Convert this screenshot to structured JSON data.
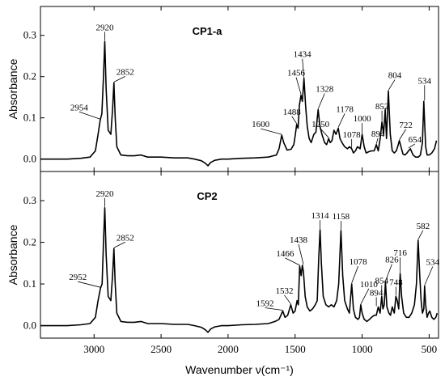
{
  "chart_data": [
    {
      "type": "line",
      "title": "CP1-a",
      "xlabel": "Wavenumber  ν(cm⁻¹)",
      "ylabel": "Absorbance",
      "xlim": [
        3400,
        430
      ],
      "ylim": [
        -0.03,
        0.37
      ],
      "x_reversed": true,
      "x_ticks": [
        "3000",
        "2500",
        "2000",
        "1500",
        "1000",
        "500"
      ],
      "y_ticks": [
        "0.0",
        "0.1",
        "0.2",
        "0.3"
      ],
      "y_tick_values": [
        0.0,
        0.1,
        0.2,
        0.3
      ],
      "x_tick_values": [
        3000,
        2500,
        2000,
        1500,
        1000,
        500
      ],
      "series": [
        {
          "x": [
            3400,
            3300,
            3200,
            3100,
            3030,
            2990,
            2970,
            2954,
            2942,
            2930,
            2920,
            2910,
            2895,
            2875,
            2862,
            2852,
            2842,
            2830,
            2800,
            2750,
            2700,
            2650,
            2600,
            2500,
            2400,
            2300,
            2250,
            2200,
            2170,
            2150,
            2130,
            2100,
            2050,
            2000,
            1900,
            1800,
            1700,
            1640,
            1620,
            1600,
            1585,
            1560,
            1530,
            1510,
            1500,
            1488,
            1478,
            1468,
            1456,
            1446,
            1434,
            1422,
            1410,
            1395,
            1380,
            1360,
            1345,
            1328,
            1315,
            1300,
            1280,
            1265,
            1250,
            1238,
            1225,
            1210,
            1195,
            1178,
            1165,
            1150,
            1130,
            1110,
            1095,
            1078,
            1065,
            1050,
            1035,
            1015,
            1000,
            985,
            970,
            950,
            930,
            910,
            894,
            880,
            865,
            852,
            840,
            828,
            818,
            804,
            790,
            775,
            760,
            745,
            735,
            722,
            710,
            695,
            680,
            665,
            654,
            640,
            620,
            600,
            580,
            565,
            550,
            540,
            534,
            526,
            515,
            500,
            480,
            460,
            445
          ],
          "y": [
            0.0,
            0.0,
            0.0,
            0.002,
            0.005,
            0.02,
            0.06,
            0.095,
            0.11,
            0.2,
            0.285,
            0.17,
            0.07,
            0.06,
            0.12,
            0.185,
            0.1,
            0.03,
            0.01,
            0.008,
            0.008,
            0.01,
            0.005,
            0.005,
            0.003,
            0.003,
            0.0,
            -0.004,
            -0.01,
            -0.016,
            -0.008,
            -0.003,
            0.0,
            0.0,
            0.002,
            0.003,
            0.005,
            0.01,
            0.025,
            0.058,
            0.04,
            0.022,
            0.024,
            0.035,
            0.055,
            0.084,
            0.075,
            0.13,
            0.155,
            0.14,
            0.196,
            0.13,
            0.08,
            0.05,
            0.04,
            0.06,
            0.065,
            0.12,
            0.08,
            0.06,
            0.04,
            0.035,
            0.05,
            0.04,
            0.045,
            0.07,
            0.06,
            0.075,
            0.05,
            0.04,
            0.03,
            0.025,
            0.03,
            0.025,
            0.015,
            0.02,
            0.03,
            0.025,
            0.06,
            0.03,
            0.015,
            0.018,
            0.02,
            0.02,
            0.035,
            0.02,
            0.05,
            0.09,
            0.06,
            0.12,
            0.05,
            0.165,
            0.06,
            0.02,
            0.015,
            0.02,
            0.03,
            0.045,
            0.03,
            0.012,
            0.01,
            0.015,
            0.02,
            0.025,
            0.01,
            0.005,
            0.005,
            0.01,
            0.04,
            0.14,
            0.09,
            0.03,
            0.01,
            0.01,
            0.015,
            0.025,
            0.045
          ]
        }
      ],
      "annotations": [
        {
          "text": "2954",
          "x": 2954,
          "y": 0.095
        },
        {
          "text": "2920",
          "x": 2920,
          "y": 0.285
        },
        {
          "text": "2852",
          "x": 2852,
          "y": 0.185
        },
        {
          "text": "1600",
          "x": 1600,
          "y": 0.058
        },
        {
          "text": "1488",
          "x": 1488,
          "y": 0.084
        },
        {
          "text": "1456",
          "x": 1456,
          "y": 0.155
        },
        {
          "text": "1434",
          "x": 1434,
          "y": 0.196
        },
        {
          "text": "1328",
          "x": 1328,
          "y": 0.12
        },
        {
          "text": "1250",
          "x": 1250,
          "y": 0.05
        },
        {
          "text": "1178",
          "x": 1178,
          "y": 0.075
        },
        {
          "text": "1078",
          "x": 1078,
          "y": 0.025
        },
        {
          "text": "1000",
          "x": 1000,
          "y": 0.06
        },
        {
          "text": "894",
          "x": 894,
          "y": 0.035
        },
        {
          "text": "852",
          "x": 852,
          "y": 0.09
        },
        {
          "text": "804",
          "x": 804,
          "y": 0.165
        },
        {
          "text": "722",
          "x": 722,
          "y": 0.045
        },
        {
          "text": "654",
          "x": 654,
          "y": 0.025
        },
        {
          "text": "534",
          "x": 534,
          "y": 0.14
        }
      ]
    },
    {
      "type": "line",
      "title": "CP2",
      "xlabel": "Wavenumber  ν(cm⁻¹)",
      "ylabel": "Absorbance",
      "xlim": [
        3400,
        430
      ],
      "ylim": [
        -0.03,
        0.37
      ],
      "x_reversed": true,
      "x_ticks": [
        "3000",
        "2500",
        "2000",
        "1500",
        "1000",
        "500"
      ],
      "y_ticks": [
        "0.0",
        "0.1",
        "0.2",
        "0.3"
      ],
      "y_tick_values": [
        0.0,
        0.1,
        0.2,
        0.3
      ],
      "x_tick_values": [
        3000,
        2500,
        2000,
        1500,
        1000,
        500
      ],
      "series": [
        {
          "x": [
            3400,
            3300,
            3200,
            3100,
            3030,
            2990,
            2970,
            2952,
            2940,
            2930,
            2920,
            2910,
            2895,
            2875,
            2862,
            2852,
            2842,
            2830,
            2800,
            2750,
            2700,
            2650,
            2600,
            2500,
            2400,
            2300,
            2250,
            2200,
            2170,
            2150,
            2130,
            2100,
            2050,
            2000,
            1900,
            1800,
            1700,
            1650,
            1620,
            1592,
            1575,
            1555,
            1532,
            1515,
            1500,
            1485,
            1476,
            1466,
            1455,
            1446,
            1438,
            1425,
            1410,
            1390,
            1370,
            1350,
            1335,
            1324,
            1314,
            1304,
            1290,
            1270,
            1250,
            1230,
            1210,
            1190,
            1175,
            1158,
            1145,
            1130,
            1110,
            1095,
            1078,
            1065,
            1050,
            1030,
            1020,
            1010,
            1000,
            985,
            965,
            945,
            930,
            910,
            894,
            880,
            866,
            854,
            845,
            835,
            826,
            815,
            800,
            788,
            775,
            760,
            748,
            738,
            727,
            716,
            705,
            690,
            670,
            650,
            630,
            610,
            595,
            582,
            570,
            560,
            550,
            540,
            534,
            526,
            515,
            505,
            495,
            480,
            465,
            450,
            440
          ],
          "y": [
            0.0,
            0.0,
            0.0,
            0.002,
            0.005,
            0.02,
            0.06,
            0.09,
            0.1,
            0.2,
            0.283,
            0.17,
            0.07,
            0.06,
            0.12,
            0.185,
            0.1,
            0.03,
            0.01,
            0.008,
            0.008,
            0.01,
            0.005,
            0.005,
            0.003,
            0.003,
            0.0,
            -0.004,
            -0.01,
            -0.016,
            -0.008,
            -0.003,
            0.0,
            0.0,
            0.002,
            0.003,
            0.005,
            0.01,
            0.015,
            0.035,
            0.02,
            0.025,
            0.05,
            0.03,
            0.035,
            0.06,
            0.05,
            0.143,
            0.12,
            0.145,
            0.13,
            0.07,
            0.045,
            0.035,
            0.04,
            0.05,
            0.06,
            0.16,
            0.23,
            0.15,
            0.07,
            0.05,
            0.045,
            0.05,
            0.045,
            0.06,
            0.1,
            0.228,
            0.12,
            0.06,
            0.04,
            0.03,
            0.1,
            0.04,
            0.02,
            0.015,
            0.02,
            0.05,
            0.03,
            0.015,
            0.01,
            0.015,
            0.02,
            0.025,
            0.025,
            0.045,
            0.03,
            0.07,
            0.04,
            0.05,
            0.105,
            0.045,
            0.03,
            0.025,
            0.045,
            0.03,
            0.07,
            0.06,
            0.04,
            0.125,
            0.07,
            0.03,
            0.02,
            0.02,
            0.03,
            0.05,
            0.1,
            0.205,
            0.12,
            0.06,
            0.03,
            0.04,
            0.095,
            0.05,
            0.02,
            0.03,
            0.035,
            0.02,
            0.015,
            0.02,
            0.03
          ]
        }
      ],
      "annotations": [
        {
          "text": "2952",
          "x": 2952,
          "y": 0.09
        },
        {
          "text": "2920",
          "x": 2920,
          "y": 0.283
        },
        {
          "text": "2852",
          "x": 2852,
          "y": 0.185
        },
        {
          "text": "1592",
          "x": 1592,
          "y": 0.035
        },
        {
          "text": "1532",
          "x": 1532,
          "y": 0.05
        },
        {
          "text": "1466",
          "x": 1466,
          "y": 0.143
        },
        {
          "text": "1438",
          "x": 1438,
          "y": 0.145
        },
        {
          "text": "1314",
          "x": 1314,
          "y": 0.23
        },
        {
          "text": "1158",
          "x": 1158,
          "y": 0.228
        },
        {
          "text": "1078",
          "x": 1078,
          "y": 0.1
        },
        {
          "text": "1010",
          "x": 1010,
          "y": 0.05
        },
        {
          "text": "894",
          "x": 894,
          "y": 0.045
        },
        {
          "text": "854",
          "x": 854,
          "y": 0.07
        },
        {
          "text": "826",
          "x": 826,
          "y": 0.105
        },
        {
          "text": "748",
          "x": 748,
          "y": 0.07
        },
        {
          "text": "716",
          "x": 716,
          "y": 0.125
        },
        {
          "text": "582",
          "x": 582,
          "y": 0.205
        },
        {
          "text": "534",
          "x": 534,
          "y": 0.095
        }
      ]
    }
  ]
}
